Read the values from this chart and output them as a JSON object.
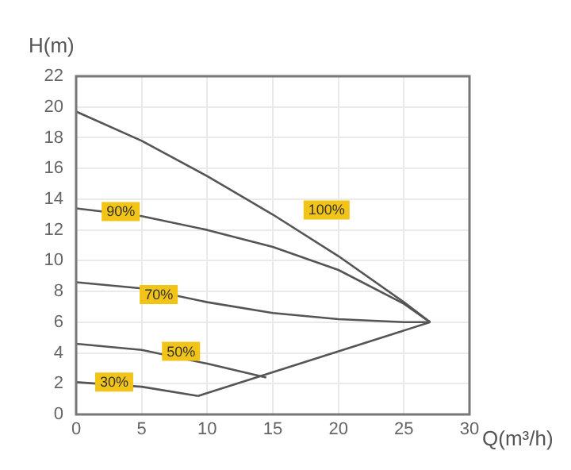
{
  "chart_data": {
    "type": "line",
    "xlabel": "Q(m³/h)",
    "ylabel": "H(m)",
    "xlim": [
      0,
      30
    ],
    "xticks": [
      0,
      5,
      10,
      15,
      20,
      25,
      30
    ],
    "ylim": [
      0,
      22
    ],
    "yticks": [
      0,
      2,
      4,
      6,
      8,
      10,
      12,
      14,
      16,
      18,
      20,
      22
    ],
    "grid": true,
    "marker": "none",
    "line_style": "solid",
    "series": [
      {
        "color": "#555555",
        "x": [
          0,
          5,
          10,
          15,
          20,
          25,
          27
        ],
        "values": [
          19.7,
          17.8,
          15.5,
          13,
          10.3,
          7.3,
          6
        ]
      },
      {
        "color": "#555555",
        "x": [
          0,
          5,
          10,
          15,
          20,
          25,
          27
        ],
        "values": [
          13.4,
          12.9,
          12,
          10.9,
          9.4,
          7.2,
          6
        ]
      },
      {
        "color": "#555555",
        "x": [
          0,
          5,
          10,
          15,
          20,
          25,
          27
        ],
        "values": [
          8.6,
          8.2,
          7.3,
          6.6,
          6.2,
          6,
          6
        ]
      },
      {
        "color": "#555555",
        "x": [
          0,
          5,
          10,
          14.5
        ],
        "values": [
          4.6,
          4.2,
          3.3,
          2.4
        ]
      },
      {
        "color": "#555555",
        "x": [
          0,
          5,
          9.3
        ],
        "values": [
          2.1,
          1.8,
          1.2
        ]
      },
      {
        "color": "#555555",
        "x": [
          9.3,
          27
        ],
        "values": [
          1.2,
          6
        ]
      }
    ],
    "annotations": [
      {
        "text": "100%",
        "x": 19.1,
        "y": 13.3
      },
      {
        "text": "90%",
        "x": 3.4,
        "y": 13.2
      },
      {
        "text": "70%",
        "x": 6.3,
        "y": 7.8
      },
      {
        "text": "50%",
        "x": 8.0,
        "y": 4.1
      },
      {
        "text": "30%",
        "x": 2.9,
        "y": 2.1
      }
    ]
  }
}
